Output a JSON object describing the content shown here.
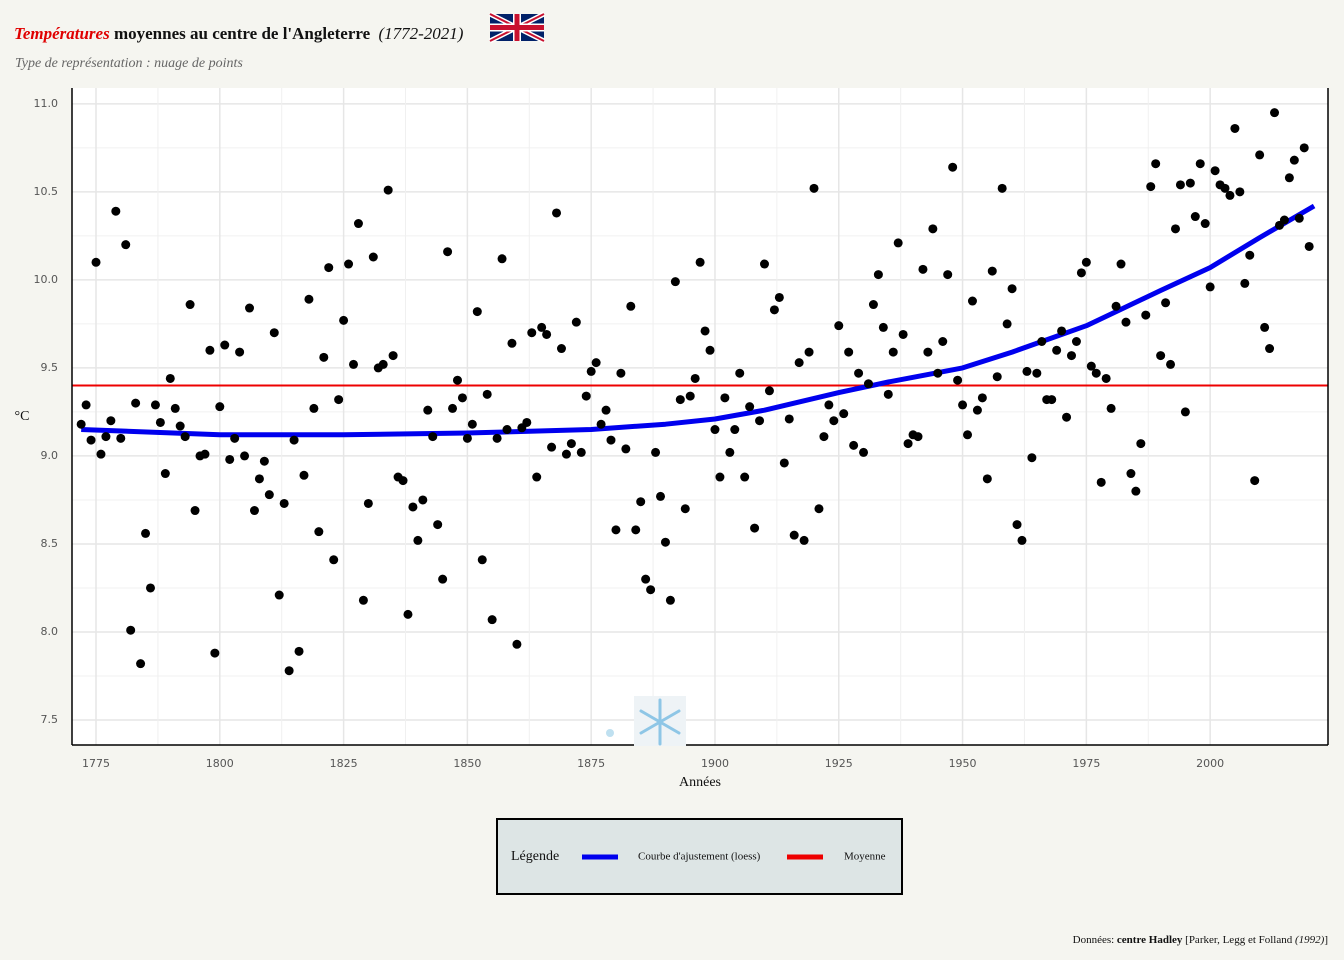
{
  "chart_data": {
    "type": "scatter",
    "title_highlight": "Températures",
    "title": "moyennes au centre de l'Angleterre",
    "title_period": "(1772-2021)",
    "subtitle": "Type de représentation : nuage de points",
    "ylabel": "°C",
    "xlabel": "Années",
    "color": "#000000",
    "xlim": [
      1770.15,
      2023.8
    ],
    "ylim": [
      7.358,
      11.09
    ],
    "xticks": [
      1775,
      1800,
      1825,
      1850,
      1875,
      1900,
      1925,
      1950,
      1975,
      2000
    ],
    "yticks": [
      7.5,
      {
        "value": 8,
        "label": "8.0"
      },
      8.5,
      {
        "value": 9,
        "label": "9.0"
      },
      9.5,
      {
        "value": 10,
        "label": "10.0"
      },
      10.5,
      {
        "value": 11,
        "label": "11.0"
      }
    ],
    "grid": true,
    "x": [
      1772,
      1773,
      1774,
      1775,
      1776,
      1777,
      1778,
      1779,
      1780,
      1781,
      1782,
      1783,
      1784,
      1785,
      1786,
      1787,
      1788,
      1789,
      1790,
      1791,
      1792,
      1793,
      1794,
      1795,
      1796,
      1797,
      1798,
      1799,
      1800,
      1801,
      1802,
      1803,
      1804,
      1805,
      1806,
      1807,
      1808,
      1809,
      1810,
      1811,
      1812,
      1813,
      1814,
      1815,
      1816,
      1817,
      1818,
      1819,
      1820,
      1821,
      1822,
      1823,
      1824,
      1825,
      1826,
      1827,
      1828,
      1829,
      1830,
      1831,
      1832,
      1833,
      1834,
      1835,
      1836,
      1837,
      1838,
      1839,
      1840,
      1841,
      1842,
      1843,
      1844,
      1845,
      1846,
      1847,
      1848,
      1849,
      1850,
      1851,
      1852,
      1853,
      1854,
      1855,
      1856,
      1857,
      1858,
      1859,
      1860,
      1861,
      1862,
      1863,
      1864,
      1865,
      1866,
      1867,
      1868,
      1869,
      1870,
      1871,
      1872,
      1873,
      1874,
      1875,
      1876,
      1877,
      1878,
      1879,
      1880,
      1881,
      1882,
      1883,
      1884,
      1885,
      1886,
      1887,
      1888,
      1889,
      1890,
      1891,
      1892,
      1893,
      1894,
      1895,
      1896,
      1897,
      1898,
      1899,
      1900,
      1901,
      1902,
      1903,
      1904,
      1905,
      1906,
      1907,
      1908,
      1909,
      1910,
      1911,
      1912,
      1913,
      1914,
      1915,
      1916,
      1917,
      1918,
      1919,
      1920,
      1921,
      1922,
      1923,
      1924,
      1925,
      1926,
      1927,
      1928,
      1929,
      1930,
      1931,
      1932,
      1933,
      1934,
      1935,
      1936,
      1937,
      1938,
      1939,
      1940,
      1941,
      1942,
      1943,
      1944,
      1945,
      1946,
      1947,
      1948,
      1949,
      1950,
      1951,
      1952,
      1953,
      1954,
      1955,
      1956,
      1957,
      1958,
      1959,
      1960,
      1961,
      1962,
      1963,
      1964,
      1965,
      1966,
      1967,
      1968,
      1969,
      1970,
      1971,
      1972,
      1973,
      1974,
      1975,
      1976,
      1977,
      1978,
      1979,
      1980,
      1981,
      1982,
      1983,
      1984,
      1985,
      1986,
      1987,
      1988,
      1989,
      1990,
      1991,
      1992,
      1993,
      1994,
      1995,
      1996,
      1997,
      1998,
      1999,
      2000,
      2001,
      2002,
      2003,
      2004,
      2005,
      2006,
      2007,
      2008,
      2009,
      2010,
      2011,
      2012,
      2013,
      2014,
      2015,
      2016,
      2017,
      2018,
      2019,
      2020
    ],
    "values": [
      9.18,
      9.29,
      9.09,
      10.1,
      9.01,
      9.11,
      9.2,
      10.39,
      9.1,
      10.2,
      8.01,
      9.3,
      7.82,
      8.56,
      8.25,
      9.29,
      9.19,
      8.9,
      9.44,
      9.27,
      9.17,
      9.11,
      9.86,
      8.69,
      9.0,
      9.01,
      9.6,
      7.88,
      9.28,
      9.63,
      8.98,
      9.1,
      9.59,
      9.0,
      9.84,
      8.69,
      8.87,
      8.97,
      8.78,
      9.7,
      8.21,
      8.73,
      7.78,
      9.09,
      7.89,
      8.89,
      9.89,
      9.27,
      8.57,
      9.56,
      10.07,
      8.41,
      9.32,
      9.77,
      10.09,
      9.52,
      10.32,
      8.18,
      8.73,
      10.13,
      9.5,
      9.52,
      10.51,
      9.57,
      8.88,
      8.86,
      8.1,
      8.71,
      8.52,
      8.75,
      9.26,
      9.11,
      8.61,
      8.3,
      10.16,
      9.27,
      9.43,
      9.33,
      9.1,
      9.18,
      9.82,
      8.41,
      9.35,
      8.07,
      9.1,
      10.12,
      9.15,
      9.64,
      7.93,
      9.16,
      9.19,
      9.7,
      8.88,
      9.73,
      9.69,
      9.05,
      10.38,
      9.61,
      9.01,
      9.07,
      9.76,
      9.02,
      9.34,
      9.48,
      9.53,
      9.18,
      9.26,
      9.09,
      8.58,
      9.47,
      9.04,
      9.85,
      8.58,
      8.74,
      8.3,
      8.24,
      9.02,
      8.77,
      8.51,
      8.18,
      9.99,
      9.32,
      8.7,
      9.34,
      9.44,
      10.1,
      9.71,
      9.6,
      9.15,
      8.88,
      9.33,
      9.02,
      9.15,
      9.47,
      8.88,
      9.28,
      8.59,
      9.2,
      10.09,
      9.37,
      9.83,
      9.9,
      8.96,
      9.21,
      8.55,
      9.53,
      8.52,
      9.59,
      10.52,
      8.7,
      9.11,
      9.29,
      9.2,
      9.74,
      9.24,
      9.59,
      9.06,
      9.47,
      9.02,
      9.41,
      9.86,
      10.03,
      9.73,
      9.35,
      9.59,
      10.21,
      9.69,
      9.07,
      9.12,
      9.11,
      10.06,
      9.59,
      10.29,
      9.47,
      9.65,
      10.03,
      10.64,
      9.43,
      9.29,
      9.12,
      9.88,
      9.26,
      9.33,
      8.87,
      10.05,
      9.45,
      10.52,
      9.75,
      9.95,
      8.61,
      8.52,
      9.48,
      8.99,
      9.47,
      9.65,
      9.32,
      9.32,
      9.6,
      9.71,
      9.22,
      9.57,
      9.65,
      10.04,
      10.1,
      9.51,
      9.47,
      8.85,
      9.44,
      9.27,
      9.85,
      10.09,
      9.76,
      8.9,
      8.8,
      9.07,
      9.8,
      10.53,
      10.66,
      9.57,
      9.87,
      9.52,
      10.29,
      10.54,
      9.25,
      10.55,
      10.36,
      10.66,
      10.32,
      9.96,
      10.62,
      10.54,
      10.52,
      10.48,
      10.86,
      10.5,
      9.98,
      10.14,
      8.86,
      10.71,
      9.73,
      9.61,
      10.95,
      10.31,
      10.34,
      10.58,
      10.68,
      10.35,
      10.75,
      10.19
    ],
    "fit": {
      "name": "Courbe d'ajustement (loess)",
      "color": "#0000ee",
      "x": [
        1772,
        1800,
        1825,
        1850,
        1875,
        1890,
        1900,
        1910,
        1925,
        1935,
        1950,
        1960,
        1975,
        1990,
        2000,
        2010,
        2021
      ],
      "values": [
        9.15,
        9.12,
        9.12,
        9.13,
        9.15,
        9.18,
        9.21,
        9.26,
        9.36,
        9.42,
        9.5,
        9.59,
        9.74,
        9.94,
        10.07,
        10.24,
        10.42
      ]
    },
    "mean": {
      "name": "Moyenne",
      "color": "#ee0000",
      "value": 9.4
    },
    "legend_title": "Légende",
    "source_prefix": "Données:",
    "source_org": "centre Hadley",
    "source_ref": "[Parker, Legg et Folland",
    "source_year": "(1992)",
    "source_close": "]"
  }
}
